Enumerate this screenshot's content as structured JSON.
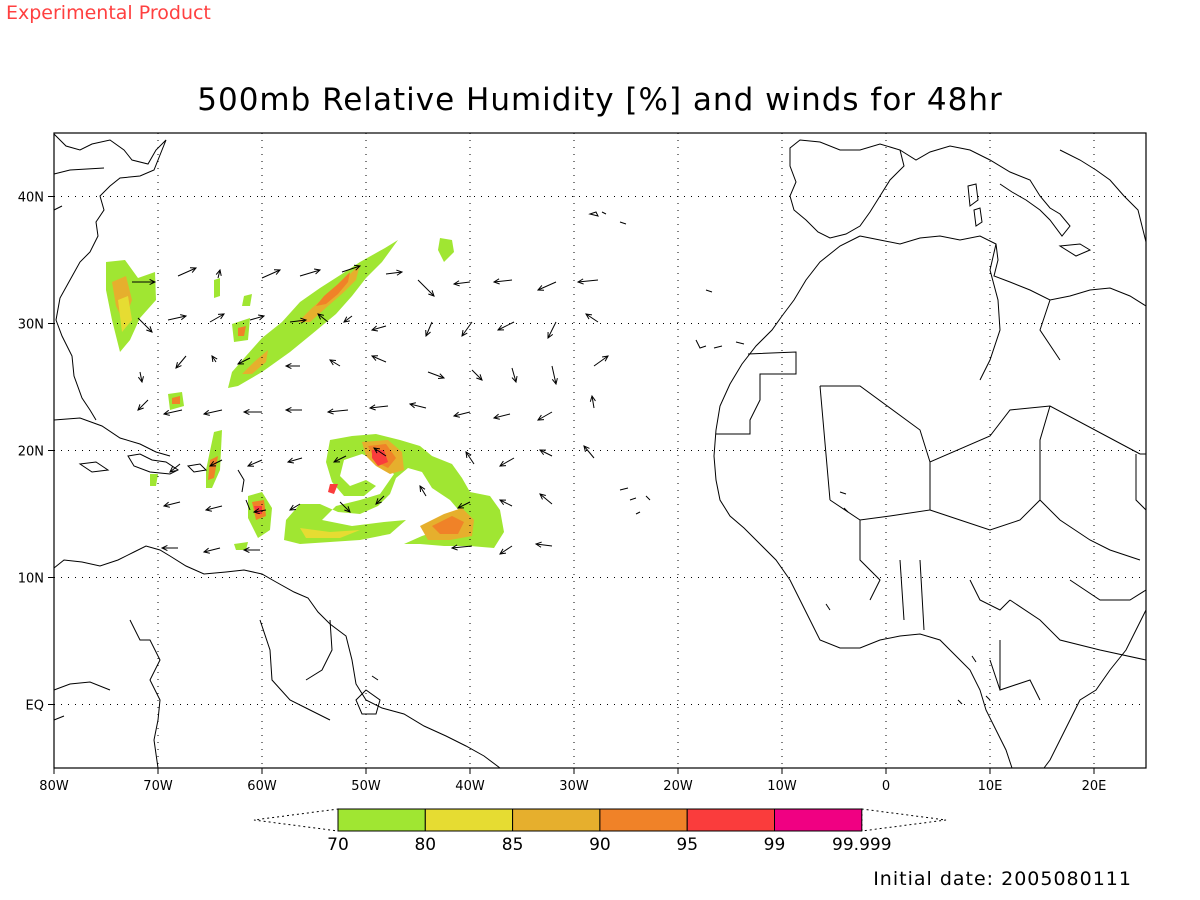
{
  "header": {
    "tag": "Experimental Product",
    "title": "500mb Relative Humidity [%] and winds for 48hr"
  },
  "footer": {
    "initial_date": "Initial date: 2005080111"
  },
  "map": {
    "extent": {
      "lon": [
        -80,
        25
      ],
      "lat": [
        -5,
        45
      ]
    },
    "grid": "dotted",
    "lon_labels": [
      "80W",
      "70W",
      "60W",
      "50W",
      "40W",
      "30W",
      "20W",
      "10W",
      "0",
      "10E",
      "20E"
    ],
    "lat_labels": [
      "EQ",
      "10N",
      "20N",
      "30N",
      "40N"
    ]
  },
  "colorbar": {
    "boundaries": [
      "70",
      "80",
      "85",
      "90",
      "95",
      "99",
      "99.999"
    ],
    "colors": [
      "#a0e632",
      "#e6dc32",
      "#e6af2d",
      "#f08228",
      "#fa3c3c",
      "#f00082"
    ]
  }
}
